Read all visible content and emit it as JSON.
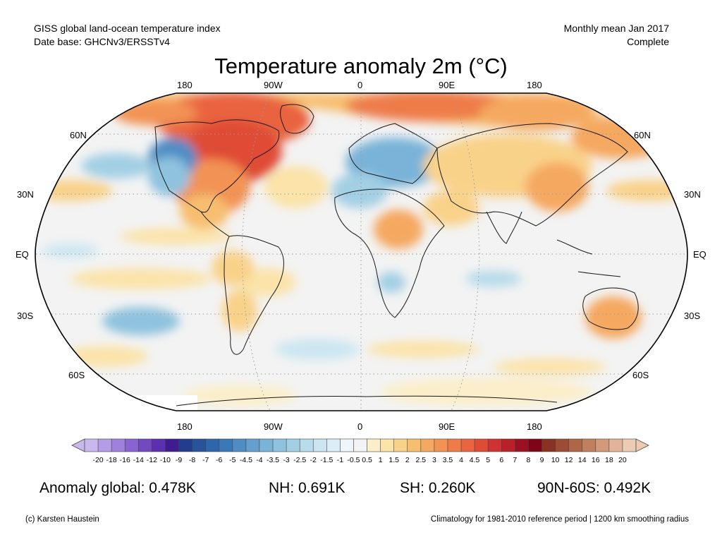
{
  "header": {
    "left_line1": "GISS global land-ocean temperature index",
    "left_line2": "Date base: GHCNv3/ERSSTv4",
    "right_line1": "Monthly mean Jan 2017",
    "right_line2": "Complete"
  },
  "title": "Temperature anomaly 2m (°C)",
  "map": {
    "projection": "Robinson",
    "lon_labels": [
      "180",
      "90W",
      "0",
      "90E",
      "180"
    ],
    "lat_labels_left": [
      "60N",
      "30N",
      "EQ",
      "30S",
      "60S"
    ],
    "lat_labels_right": [
      "60N",
      "30N",
      "EQ",
      "30S",
      "60S"
    ],
    "graticule": "dotted"
  },
  "colorbar": {
    "ticks": [
      "-20",
      "-18",
      "-16",
      "-14",
      "-12",
      "-10",
      "-9",
      "-8",
      "-7",
      "-6",
      "-5",
      "-4.5",
      "-4",
      "-3.5",
      "-3",
      "-2.5",
      "-2",
      "-1.5",
      "-1",
      "-0.5",
      "0.5",
      "1",
      "1.5",
      "2",
      "2.5",
      "3",
      "3.5",
      "4",
      "4.5",
      "5",
      "6",
      "7",
      "8",
      "9",
      "10",
      "12",
      "14",
      "16",
      "18",
      "20"
    ],
    "colors": [
      "#c8b8ee",
      "#b59ce6",
      "#9f80dc",
      "#8963d0",
      "#7349c2",
      "#5c30b1",
      "#3f1c8f",
      "#223d8c",
      "#27539c",
      "#2d66aa",
      "#3a79b8",
      "#4f8cc4",
      "#63a0cf",
      "#79b3d8",
      "#8fc2de",
      "#a3cfe4",
      "#b8dcea",
      "#cbe6f1",
      "#dcedf7",
      "#eef6fb",
      "#f3f3f3",
      "#fbeec9",
      "#fbe3a9",
      "#f9d28a",
      "#f7be70",
      "#f5a860",
      "#f29354",
      "#ee7c49",
      "#e9643f",
      "#df4c36",
      "#cf3230",
      "#b9202a",
      "#9c1122",
      "#7e0516",
      "#8a3222",
      "#9c4c34",
      "#ae6647",
      "#c07f5f",
      "#d29a7b",
      "#e3b399",
      "#eccbb4"
    ]
  },
  "stats": {
    "global": "Anomaly global: 0.478K",
    "nh": "NH: 0.691K",
    "sh": "SH: 0.260K",
    "arctic": "90N-60S: 0.492K"
  },
  "footer": {
    "credit": "(c) Karsten Haustein",
    "note": "Climatology for 1981-2010 reference period | 1200 km smoothing radius"
  }
}
